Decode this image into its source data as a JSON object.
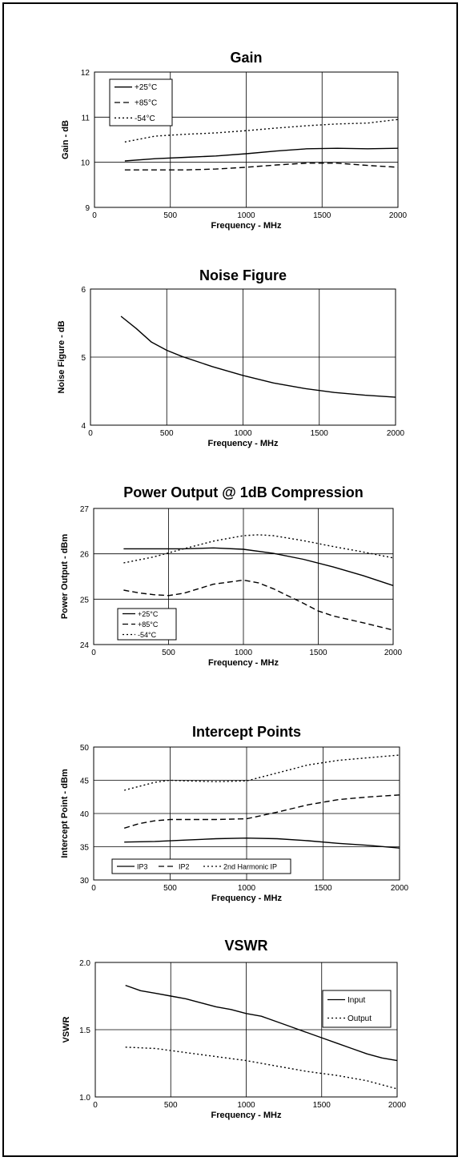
{
  "chart_data": [
    {
      "type": "line",
      "title": "Gain",
      "xlabel": "Frequency - MHz",
      "ylabel": "Gain - dB",
      "xlim": [
        0,
        2000
      ],
      "ylim": [
        9,
        12
      ],
      "xticks": [
        "0",
        "500",
        "1000",
        "1500",
        "2000"
      ],
      "yticks": [
        "9",
        "10",
        "11",
        "12"
      ],
      "grid": true,
      "legend_position": "top-left",
      "series": [
        {
          "name": "+25°C",
          "style": "solid",
          "x": [
            200,
            400,
            600,
            800,
            1000,
            1200,
            1400,
            1600,
            1800,
            2000
          ],
          "y": [
            10.03,
            10.08,
            10.11,
            10.14,
            10.19,
            10.25,
            10.3,
            10.31,
            10.3,
            10.31
          ]
        },
        {
          "name": "+85°C",
          "style": "dashed",
          "x": [
            200,
            400,
            600,
            800,
            1000,
            1200,
            1400,
            1600,
            1800,
            2000
          ],
          "y": [
            9.83,
            9.83,
            9.83,
            9.85,
            9.89,
            9.94,
            9.98,
            9.98,
            9.93,
            9.89
          ]
        },
        {
          "name": "-54°C",
          "style": "dotted",
          "x": [
            200,
            400,
            600,
            800,
            1000,
            1200,
            1400,
            1600,
            1800,
            2000
          ],
          "y": [
            10.45,
            10.58,
            10.62,
            10.65,
            10.7,
            10.76,
            10.81,
            10.85,
            10.87,
            10.95
          ]
        }
      ]
    },
    {
      "type": "line",
      "title": "Noise Figure",
      "xlabel": "Frequency - MHz",
      "ylabel": "Noise Figure - dB",
      "xlim": [
        0,
        2000
      ],
      "ylim": [
        4,
        6
      ],
      "xticks": [
        "0",
        "500",
        "1000",
        "1500",
        "2000"
      ],
      "yticks": [
        "4",
        "5",
        "6"
      ],
      "grid": true,
      "series": [
        {
          "style": "solid",
          "x": [
            200,
            300,
            400,
            500,
            600,
            800,
            1000,
            1200,
            1400,
            1600,
            1800,
            2000
          ],
          "y": [
            5.6,
            5.42,
            5.22,
            5.1,
            5.01,
            4.86,
            4.73,
            4.62,
            4.54,
            4.48,
            4.44,
            4.41
          ]
        }
      ]
    },
    {
      "type": "line",
      "title": "Power Output @ 1dB Compression",
      "xlabel": "Frequency - MHz",
      "ylabel": "Power Output - dBm",
      "xlim": [
        0,
        2000
      ],
      "ylim": [
        24,
        27
      ],
      "xticks": [
        "0",
        "500",
        "1000",
        "1500",
        "2000"
      ],
      "yticks": [
        "24",
        "25",
        "26",
        "27"
      ],
      "grid": true,
      "legend_position": "bottom-left",
      "series": [
        {
          "name": "+25°C",
          "style": "solid",
          "x": [
            200,
            400,
            600,
            800,
            1000,
            1200,
            1400,
            1600,
            1800,
            2000
          ],
          "y": [
            26.11,
            26.11,
            26.11,
            26.13,
            26.1,
            26.01,
            25.88,
            25.71,
            25.52,
            25.3
          ]
        },
        {
          "name": "+85°C",
          "style": "dashed",
          "x": [
            200,
            300,
            400,
            500,
            600,
            800,
            1000,
            1100,
            1200,
            1400,
            1500,
            1600,
            1800,
            2000
          ],
          "y": [
            25.2,
            25.14,
            25.1,
            25.08,
            25.13,
            25.33,
            25.42,
            25.36,
            25.23,
            24.91,
            24.74,
            24.63,
            24.48,
            24.32
          ]
        },
        {
          "name": "-54°C",
          "style": "dotted",
          "x": [
            200,
            400,
            600,
            800,
            1000,
            1100,
            1200,
            1400,
            1600,
            1800,
            2000
          ],
          "y": [
            25.8,
            25.93,
            26.11,
            26.28,
            26.4,
            26.42,
            26.4,
            26.29,
            26.16,
            26.04,
            25.91
          ]
        }
      ]
    },
    {
      "type": "line",
      "title": "Intercept Points",
      "xlabel": "Frequency - MHz",
      "ylabel": "Intercept Point - dBm",
      "xlim": [
        0,
        2000
      ],
      "ylim": [
        30,
        50
      ],
      "xticks": [
        "0",
        "500",
        "1000",
        "1500",
        "2000"
      ],
      "yticks": [
        "30",
        "35",
        "40",
        "45",
        "50"
      ],
      "grid": true,
      "legend_position": "bottom",
      "series": [
        {
          "name": "IP3",
          "style": "solid",
          "x": [
            200,
            400,
            600,
            800,
            1000,
            1200,
            1400,
            1600,
            1800,
            2000
          ],
          "y": [
            35.7,
            35.8,
            36.0,
            36.2,
            36.3,
            36.2,
            35.9,
            35.5,
            35.2,
            34.8
          ]
        },
        {
          "name": "IP2",
          "style": "dashed",
          "x": [
            200,
            300,
            400,
            500,
            600,
            800,
            1000,
            1200,
            1400,
            1600,
            1800,
            2000
          ],
          "y": [
            37.8,
            38.5,
            38.9,
            39.1,
            39.1,
            39.1,
            39.2,
            40.2,
            41.3,
            42.1,
            42.5,
            42.8
          ]
        },
        {
          "name": "2nd Harmonic IP",
          "style": "dotted",
          "x": [
            200,
            300,
            400,
            500,
            600,
            800,
            1000,
            1200,
            1400,
            1600,
            1800,
            2000
          ],
          "y": [
            43.5,
            44.1,
            44.7,
            45.0,
            44.9,
            44.8,
            44.9,
            46.1,
            47.3,
            48.0,
            48.4,
            48.8
          ]
        }
      ]
    },
    {
      "type": "line",
      "title": "VSWR",
      "xlabel": "Frequency - MHz",
      "ylabel": "VSWR",
      "xlim": [
        0,
        2000
      ],
      "ylim": [
        1.0,
        2.0
      ],
      "xticks": [
        "0",
        "500",
        "1000",
        "1500",
        "2000"
      ],
      "yticks": [
        "1.0",
        "1.5",
        "2.0"
      ],
      "grid": true,
      "legend_position": "top-right",
      "series": [
        {
          "name": "Input",
          "style": "solid",
          "x": [
            200,
            300,
            400,
            500,
            600,
            700,
            800,
            900,
            1000,
            1100,
            1200,
            1300,
            1400,
            1500,
            1600,
            1700,
            1800,
            1900,
            2000
          ],
          "y": [
            1.83,
            1.79,
            1.77,
            1.75,
            1.73,
            1.7,
            1.67,
            1.65,
            1.62,
            1.6,
            1.56,
            1.52,
            1.48,
            1.44,
            1.4,
            1.36,
            1.32,
            1.29,
            1.27
          ]
        },
        {
          "name": "Output",
          "style": "dotted",
          "x": [
            200,
            400,
            600,
            800,
            1000,
            1200,
            1400,
            1600,
            1800,
            2000
          ],
          "y": [
            1.37,
            1.36,
            1.33,
            1.3,
            1.27,
            1.23,
            1.19,
            1.16,
            1.12,
            1.06
          ]
        }
      ]
    }
  ]
}
